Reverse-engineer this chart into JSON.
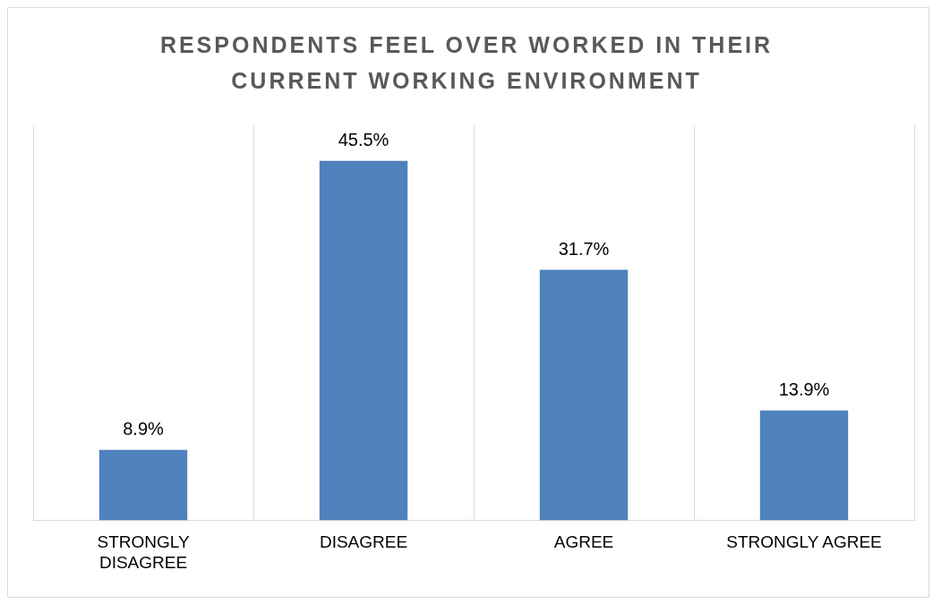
{
  "chart_data": {
    "type": "bar",
    "title": "RESPONDENTS FEEL OVER WORKED IN THEIR CURRENT WORKING ENVIRONMENT",
    "categories": [
      "STRONGLY DISAGREE",
      "DISAGREE",
      "AGREE",
      "STRONGLY AGREE"
    ],
    "values": [
      8.9,
      45.5,
      31.7,
      13.9
    ],
    "color": "#4f81bd",
    "value_labels": [
      "8.9%",
      "45.5%",
      "31.7%",
      "13.9%"
    ],
    "grid": "x",
    "legend": false
  }
}
